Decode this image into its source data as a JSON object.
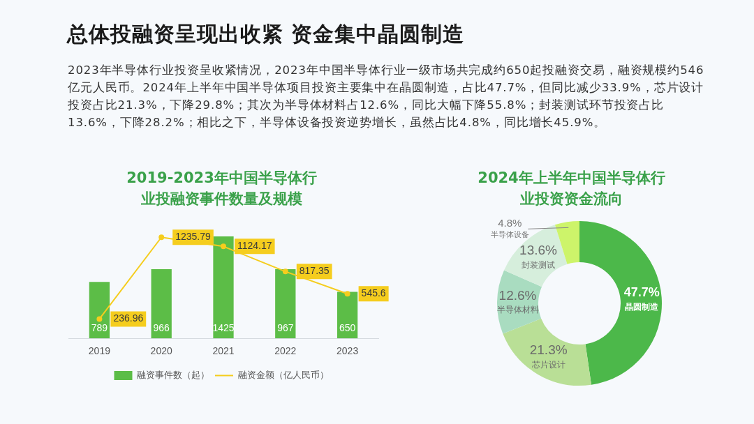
{
  "chart_data": [
    {
      "type": "other",
      "title": "总体投融资呈现出收紧 资金集中晶圆制造",
      "subtitle": "2023年半导体行业投资呈收紧情况，2023年中国半导体行业一级市场共完成约650起投融资交易，融资规模约546亿元人民币。2024年上半年中国半导体项目投资主要集中在晶圆制造，占比47.7%，但同比减少33.9%，芯片设计投资占比21.3%，下降29.8%；其次为半导体材料占12.6%，同比大幅下降55.8%；封装测试环节投资占比13.6%，下降28.2%；相比之下，半导体设备投资逆势增长，虽然占比4.8%，同比增长45.9%。"
    },
    {
      "type": "bar",
      "title": "2019-2023年中国半导体行业投融资事件数量及规模",
      "categories": [
        "2019",
        "2020",
        "2021",
        "2022",
        "2023"
      ],
      "series": [
        {
          "name": "融资事件数（起）",
          "color": "#5cbd47",
          "values": [
            789,
            966,
            1425,
            967,
            650
          ]
        },
        {
          "name": "融资金额（亿人民币）",
          "type": "line",
          "axis": "y2",
          "color": "#f5cd1e",
          "values": [
            236.96,
            1235.79,
            1124.17,
            817.35,
            545.6
          ]
        }
      ],
      "data_labels": true,
      "legend": "bottom",
      "marker": "circle",
      "tick_labels": "x"
    },
    {
      "type": "donut",
      "title": "2024年上半年中国半导体行业投资资金流向",
      "categories": [
        "晶圆制造",
        "芯片设计",
        "半导体材料",
        "封装测试",
        "半导体设备"
      ],
      "values": [
        47.7,
        21.3,
        12.6,
        13.6,
        4.8
      ],
      "value_labels": [
        "47.7%",
        "21.3%",
        "12.6%",
        "13.6%",
        "4.8%"
      ],
      "colors": [
        "#4cb84a",
        "#b9df96",
        "#a9dcc0",
        "#d6eedc",
        "#cdf46a"
      ]
    }
  ]
}
